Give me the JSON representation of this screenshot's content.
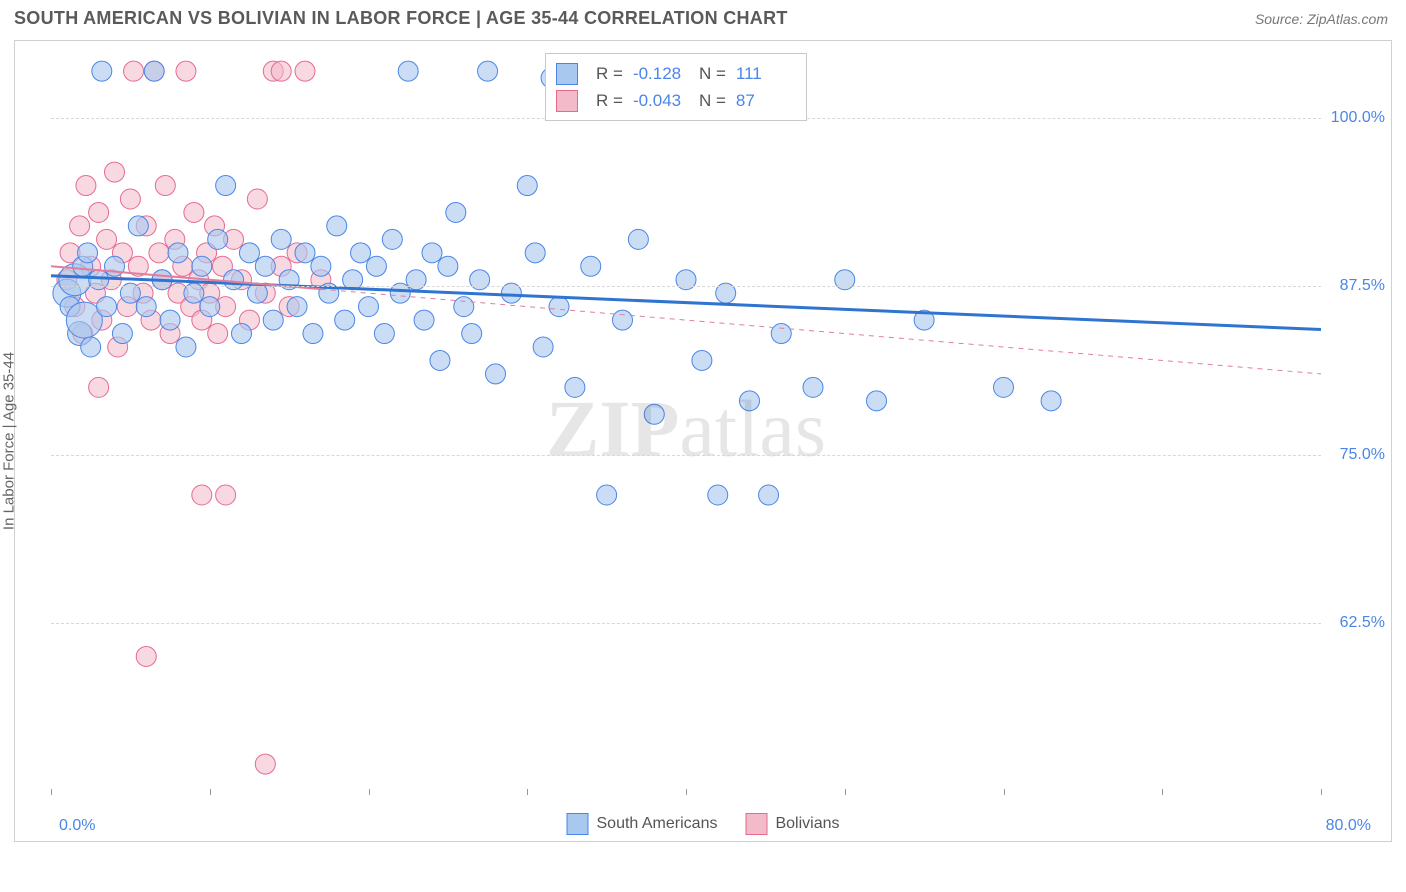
{
  "header": {
    "title": "SOUTH AMERICAN VS BOLIVIAN IN LABOR FORCE | AGE 35-44 CORRELATION CHART",
    "source": "Source: ZipAtlas.com"
  },
  "chart": {
    "type": "scatter",
    "ylabel": "In Labor Force | Age 35-44",
    "background_color": "#ffffff",
    "grid_color": "#d8d8d8",
    "border_color": "#d0d0d0",
    "xlim": [
      0,
      80
    ],
    "ylim": [
      50,
      105
    ],
    "x_ticks": [
      0,
      10,
      20,
      30,
      40,
      50,
      60,
      70,
      80
    ],
    "x_axis_labels": {
      "left": "0.0%",
      "right": "80.0%"
    },
    "y_ticks": [
      {
        "v": 62.5,
        "label": "62.5%"
      },
      {
        "v": 75.0,
        "label": "75.0%"
      },
      {
        "v": 87.5,
        "label": "87.5%"
      },
      {
        "v": 100.0,
        "label": "100.0%"
      }
    ],
    "series": [
      {
        "key": "south_americans",
        "label": "South Americans",
        "fill": "#a9c8ef",
        "stroke": "#4a86e8",
        "opacity": 0.62,
        "marker_r": 10,
        "stats": {
          "R": "-0.128",
          "N": "111"
        },
        "trend": {
          "x1": 0,
          "y1": 88.3,
          "x2": 80,
          "y2": 84.3,
          "width": 3,
          "color": "#2f74d0",
          "dash": "none"
        },
        "points": [
          [
            1,
            87,
            14
          ],
          [
            1.2,
            86,
            10
          ],
          [
            1.5,
            88,
            16
          ],
          [
            1.8,
            84,
            12
          ],
          [
            2,
            89,
            10
          ],
          [
            2.1,
            85,
            18
          ],
          [
            2.3,
            90,
            10
          ],
          [
            2.5,
            83,
            10
          ],
          [
            3,
            88,
            10
          ],
          [
            3.2,
            103.5,
            10
          ],
          [
            3.5,
            86,
            10
          ],
          [
            4,
            89,
            10
          ],
          [
            4.5,
            84,
            10
          ],
          [
            5,
            87,
            10
          ],
          [
            5.5,
            92,
            10
          ],
          [
            6,
            86,
            10
          ],
          [
            6.5,
            103.5,
            10
          ],
          [
            7,
            88,
            10
          ],
          [
            7.5,
            85,
            10
          ],
          [
            8,
            90,
            10
          ],
          [
            8.5,
            83,
            10
          ],
          [
            9,
            87,
            10
          ],
          [
            9.5,
            89,
            10
          ],
          [
            10,
            86,
            10
          ],
          [
            10.5,
            91,
            10
          ],
          [
            11,
            95,
            10
          ],
          [
            11.5,
            88,
            10
          ],
          [
            12,
            84,
            10
          ],
          [
            12.5,
            90,
            10
          ],
          [
            13,
            87,
            10
          ],
          [
            13.5,
            89,
            10
          ],
          [
            14,
            85,
            10
          ],
          [
            14.5,
            91,
            10
          ],
          [
            15,
            88,
            10
          ],
          [
            15.5,
            86,
            10
          ],
          [
            16,
            90,
            10
          ],
          [
            16.5,
            84,
            10
          ],
          [
            17,
            89,
            10
          ],
          [
            17.5,
            87,
            10
          ],
          [
            18,
            92,
            10
          ],
          [
            18.5,
            85,
            10
          ],
          [
            19,
            88,
            10
          ],
          [
            19.5,
            90,
            10
          ],
          [
            20,
            86,
            10
          ],
          [
            20.5,
            89,
            10
          ],
          [
            21,
            84,
            10
          ],
          [
            21.5,
            91,
            10
          ],
          [
            22,
            87,
            10
          ],
          [
            22.5,
            103.5,
            10
          ],
          [
            23,
            88,
            10
          ],
          [
            23.5,
            85,
            10
          ],
          [
            24,
            90,
            10
          ],
          [
            24.5,
            82,
            10
          ],
          [
            25,
            89,
            10
          ],
          [
            25.5,
            93,
            10
          ],
          [
            26,
            86,
            10
          ],
          [
            26.5,
            84,
            10
          ],
          [
            27,
            88,
            10
          ],
          [
            27.5,
            103.5,
            10
          ],
          [
            28,
            81,
            10
          ],
          [
            29,
            87,
            10
          ],
          [
            30,
            95,
            10
          ],
          [
            30.5,
            90,
            10
          ],
          [
            31,
            83,
            10
          ],
          [
            31.5,
            103,
            10
          ],
          [
            32,
            86,
            10
          ],
          [
            33,
            80,
            10
          ],
          [
            34,
            89,
            10
          ],
          [
            35,
            72,
            10
          ],
          [
            36,
            85,
            10
          ],
          [
            37,
            91,
            10
          ],
          [
            38,
            78,
            10
          ],
          [
            40,
            88,
            10
          ],
          [
            41,
            82,
            10
          ],
          [
            42,
            72,
            10
          ],
          [
            42.5,
            87,
            10
          ],
          [
            44,
            79,
            10
          ],
          [
            45.2,
            72,
            10
          ],
          [
            46,
            84,
            10
          ],
          [
            48,
            80,
            10
          ],
          [
            50,
            88,
            10
          ],
          [
            52,
            79,
            10
          ],
          [
            55,
            85,
            10
          ],
          [
            60,
            80,
            10
          ],
          [
            63,
            79,
            10
          ]
        ]
      },
      {
        "key": "bolivians",
        "label": "Bolivians",
        "fill": "#f3bac9",
        "stroke": "#e66b91",
        "opacity": 0.56,
        "marker_r": 10,
        "stats": {
          "R": "-0.043",
          "N": "87"
        },
        "trend": {
          "x1": 0,
          "y1": 89.0,
          "x2": 80,
          "y2": 81.0,
          "width": 1,
          "color": "#e07f9c",
          "dash": "4,4"
        },
        "trend_solid_extent": 17,
        "points": [
          [
            1,
            88,
            10
          ],
          [
            1.2,
            90,
            10
          ],
          [
            1.5,
            86,
            10
          ],
          [
            1.8,
            92,
            10
          ],
          [
            2,
            84,
            10
          ],
          [
            2.2,
            95,
            10
          ],
          [
            2.5,
            89,
            10
          ],
          [
            2.8,
            87,
            10
          ],
          [
            3,
            93,
            10
          ],
          [
            3.2,
            85,
            10
          ],
          [
            3.5,
            91,
            10
          ],
          [
            3.8,
            88,
            10
          ],
          [
            4,
            96,
            10
          ],
          [
            4.2,
            83,
            10
          ],
          [
            4.5,
            90,
            10
          ],
          [
            4.8,
            86,
            10
          ],
          [
            5,
            94,
            10
          ],
          [
            5.2,
            103.5,
            10
          ],
          [
            5.5,
            89,
            10
          ],
          [
            5.8,
            87,
            10
          ],
          [
            6,
            92,
            10
          ],
          [
            6.3,
            85,
            10
          ],
          [
            6.5,
            103.5,
            10
          ],
          [
            6.8,
            90,
            10
          ],
          [
            7,
            88,
            10
          ],
          [
            7.2,
            95,
            10
          ],
          [
            7.5,
            84,
            10
          ],
          [
            7.8,
            91,
            10
          ],
          [
            8,
            87,
            10
          ],
          [
            8.3,
            89,
            10
          ],
          [
            8.5,
            103.5,
            10
          ],
          [
            8.8,
            86,
            10
          ],
          [
            9,
            93,
            10
          ],
          [
            9.3,
            88,
            10
          ],
          [
            9.5,
            85,
            10
          ],
          [
            9.8,
            90,
            10
          ],
          [
            10,
            87,
            10
          ],
          [
            10.3,
            92,
            10
          ],
          [
            10.5,
            84,
            10
          ],
          [
            10.8,
            89,
            10
          ],
          [
            11,
            86,
            10
          ],
          [
            11.5,
            91,
            10
          ],
          [
            12,
            88,
            10
          ],
          [
            12.5,
            85,
            10
          ],
          [
            13,
            94,
            10
          ],
          [
            13.5,
            87,
            10
          ],
          [
            14,
            103.5,
            10
          ],
          [
            14.5,
            89,
            10
          ],
          [
            15,
            86,
            10
          ],
          [
            15.5,
            90,
            10
          ],
          [
            16,
            103.5,
            10
          ],
          [
            17,
            88,
            10
          ],
          [
            3,
            80,
            10
          ],
          [
            6,
            60,
            10
          ],
          [
            9.5,
            72,
            10
          ],
          [
            11,
            72,
            10
          ],
          [
            13.5,
            52,
            10
          ],
          [
            14.5,
            103.5,
            10
          ]
        ]
      }
    ],
    "watermark": {
      "text_bold": "ZIP",
      "text_light": "atlas"
    }
  },
  "legend_bottom": {
    "items": [
      {
        "label": "South Americans",
        "fill": "#a9c8ef",
        "stroke": "#4a86e8"
      },
      {
        "label": "Bolivians",
        "fill": "#f3bac9",
        "stroke": "#e66b91"
      }
    ]
  },
  "stats_box": {
    "rows": [
      {
        "swatch_fill": "#a9c8ef",
        "swatch_stroke": "#4a86e8",
        "R_label": "R =",
        "R": "-0.128",
        "N_label": "N =",
        "N": "111"
      },
      {
        "swatch_fill": "#f3bac9",
        "swatch_stroke": "#e66b91",
        "R_label": "R =",
        "R": "-0.043",
        "N_label": "N =",
        "N": "87"
      }
    ]
  }
}
